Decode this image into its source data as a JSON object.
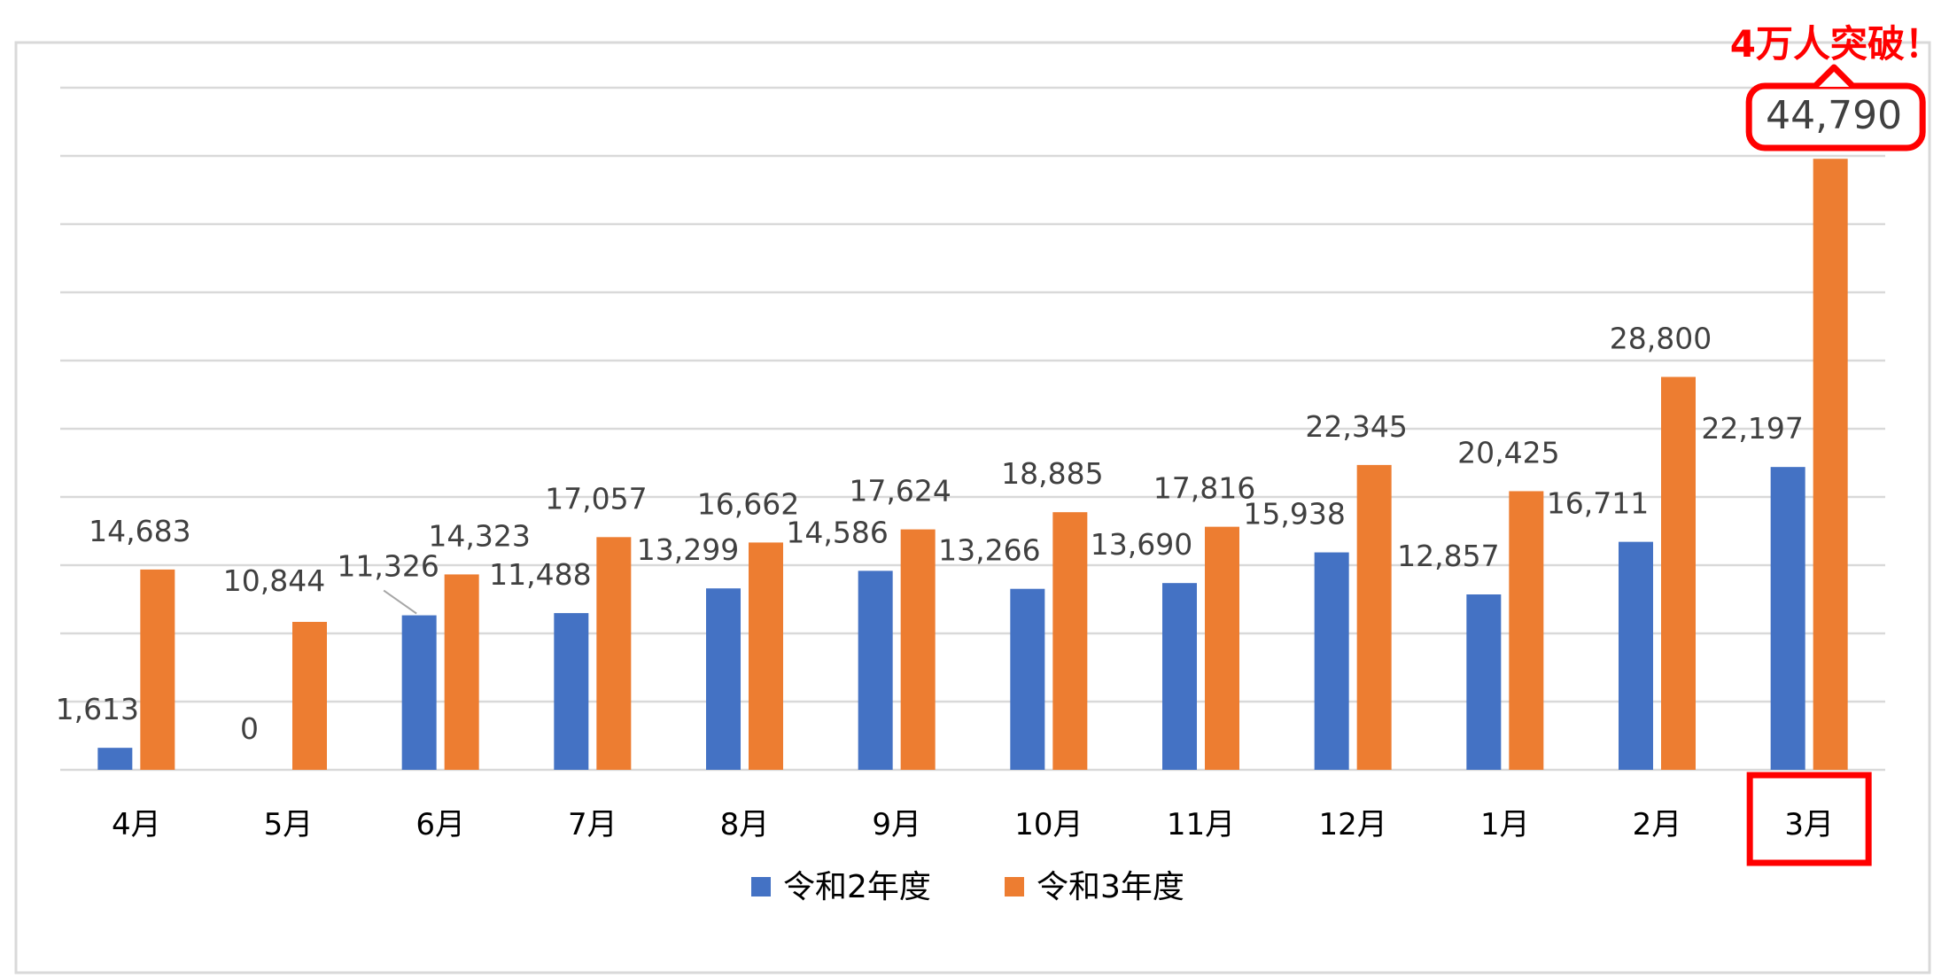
{
  "chart_data": {
    "type": "bar",
    "categories": [
      "4月",
      "5月",
      "6月",
      "7月",
      "8月",
      "9月",
      "10月",
      "11月",
      "12月",
      "1月",
      "2月",
      "3月"
    ],
    "series": [
      {
        "name": "令和2年度",
        "color": "#4472C4",
        "values": [
          1613,
          0,
          11326,
          11488,
          13299,
          14586,
          13266,
          13690,
          15938,
          12857,
          16711,
          22197
        ],
        "labels": [
          "1,613",
          "0",
          "11,326",
          "11,488",
          "13,299",
          "14,586",
          "13,266",
          "13,690",
          "15,938",
          "12,857",
          "16,711",
          "22,197"
        ]
      },
      {
        "name": "令和3年度",
        "color": "#ED7D31",
        "values": [
          14683,
          10844,
          14323,
          17057,
          16662,
          17624,
          18885,
          17816,
          22345,
          20425,
          28800,
          44790
        ],
        "labels": [
          "14,683",
          "10,844",
          "14,323",
          "17,057",
          "16,662",
          "17,624",
          "18,885",
          "17,816",
          "22,345",
          "20,425",
          "28,800",
          "44,790"
        ]
      }
    ],
    "ylim": [
      0,
      50000
    ],
    "grid": true,
    "legend_position": "bottom",
    "highlight": {
      "category": "3月",
      "value_label": "44,790",
      "callout": "4万人突破！",
      "color": "#FF0000"
    }
  }
}
